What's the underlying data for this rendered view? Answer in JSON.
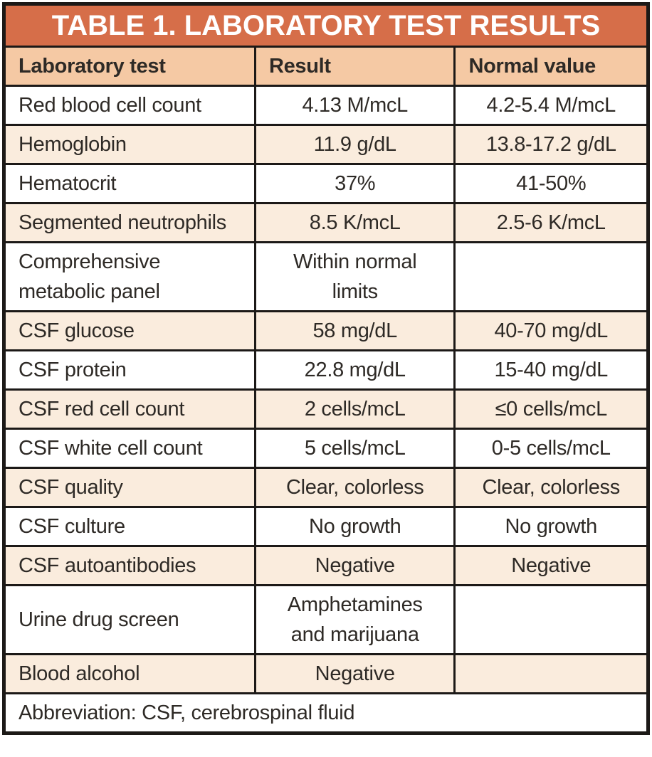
{
  "title": "TABLE 1. LABORATORY TEST RESULTS",
  "columns": [
    "Laboratory test",
    "Result",
    "Normal value"
  ],
  "rows": [
    {
      "test": "Red blood cell count",
      "result": "4.13 M/mcL",
      "normal": "4.2-5.4 M/mcL"
    },
    {
      "test": "Hemoglobin",
      "result": "11.9 g/dL",
      "normal": "13.8-17.2 g/dL"
    },
    {
      "test": "Hematocrit",
      "result": "37%",
      "normal": "41-50%"
    },
    {
      "test": "Segmented neutrophils",
      "result": "8.5 K/mcL",
      "normal": "2.5-6 K/mcL"
    },
    {
      "test": "Comprehensive metabolic panel",
      "result": "Within normal limits",
      "normal": ""
    },
    {
      "test": "CSF glucose",
      "result": "58 mg/dL",
      "normal": "40-70 mg/dL"
    },
    {
      "test": "CSF protein",
      "result": "22.8 mg/dL",
      "normal": "15-40 mg/dL"
    },
    {
      "test": "CSF red cell count",
      "result": "2 cells/mcL",
      "normal": "≤0 cells/mcL"
    },
    {
      "test": "CSF white cell count",
      "result": "5 cells/mcL",
      "normal": "0-5 cells/mcL"
    },
    {
      "test": "CSF quality",
      "result": "Clear, colorless",
      "normal": "Clear, colorless"
    },
    {
      "test": "CSF culture",
      "result": "No growth",
      "normal": "No growth"
    },
    {
      "test": "CSF autoantibodies",
      "result": "Negative",
      "normal": "Negative"
    },
    {
      "test": "Urine drug screen",
      "result": "Amphetamines and marijuana",
      "normal": ""
    },
    {
      "test": "Blood alcohol",
      "result": "Negative",
      "normal": ""
    }
  ],
  "footnote": "Abbreviation: CSF, cerebrospinal fluid",
  "colors": {
    "title_bg": "#d66e49",
    "header_bg": "#f5c9a4",
    "stripe_bg": "#faecdd",
    "row_bg": "#ffffff",
    "border_color": "#1c1917",
    "text_color": "#2e2a26",
    "title_text": "#ffffff"
  }
}
